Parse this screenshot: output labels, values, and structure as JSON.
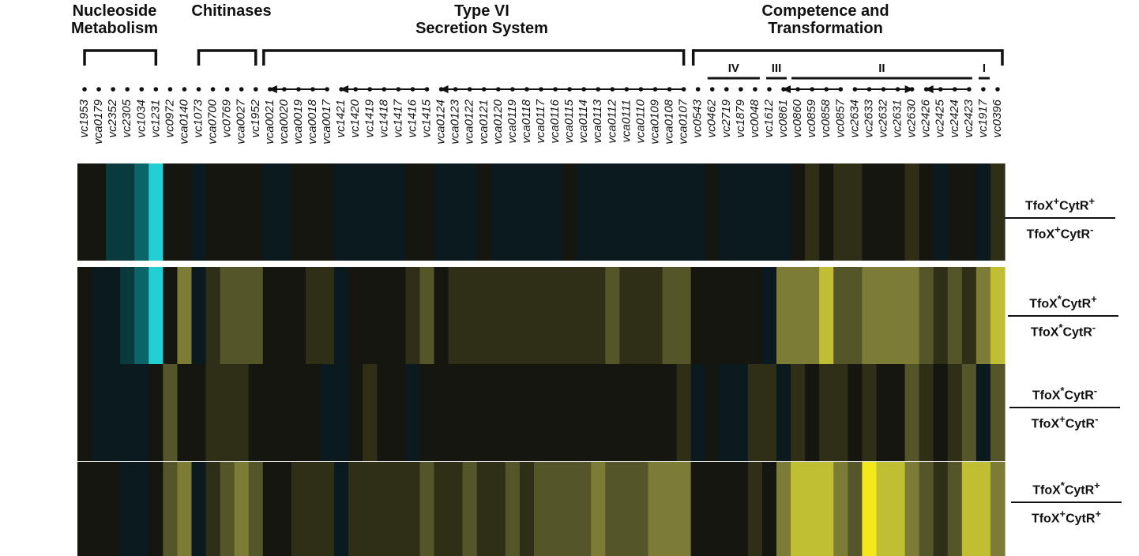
{
  "groups": [
    {
      "title": "Nucleoside\nMetabolism"
    },
    {
      "title": "Chitinases"
    },
    {
      "title": "Type VI\nSecretion System"
    },
    {
      "title": "Competence and\nTransformation"
    }
  ],
  "operon_labels": [
    "IV",
    "III",
    "II",
    "I"
  ],
  "genes": [
    "vc1953",
    "vca0179",
    "vc2352",
    "vc2305",
    "vc1034",
    "vc1231",
    "vc0972",
    "vca0140",
    "vc1073",
    "vca0700",
    "vc0769",
    "vca0027",
    "vc1952",
    "vca0021",
    "vca0020",
    "vca0019",
    "vca0018",
    "vca0017",
    "vc1421",
    "vc1420",
    "vc1419",
    "vc1418",
    "vc1417",
    "vc1416",
    "vc1415",
    "vca0124",
    "vca0123",
    "vca0122",
    "vca0121",
    "vca0120",
    "vca0119",
    "vca0118",
    "vca0117",
    "vca0116",
    "vca0115",
    "vca0114",
    "vca0113",
    "vca0112",
    "vca0111",
    "vca0110",
    "vca0109",
    "vca0108",
    "vca0107",
    "vc0543",
    "vc0462",
    "vc2719",
    "vc1879",
    "vc0048",
    "vc1612",
    "vc0861",
    "vc0860",
    "vc0859",
    "vc0858",
    "vc0857",
    "vc2634",
    "vc2633",
    "vc2632",
    "vc2631",
    "vc2630",
    "vc2426",
    "vc2425",
    "vc2424",
    "vc2423",
    "vc1917",
    "vc0396"
  ],
  "rows": [
    {
      "strain1": "TfoX",
      "mark1": "+",
      "gene1": "CytR",
      "sign1": "+",
      "strain2": "TfoX",
      "mark2": "+",
      "gene2": "CytR",
      "sign2": "-"
    },
    {
      "strain1": "TfoX",
      "mark1": "*",
      "gene1": "CytR",
      "sign1": "+",
      "strain2": "TfoX",
      "mark2": "*",
      "gene2": "CytR",
      "sign2": "-"
    },
    {
      "strain1": "TfoX",
      "mark1": "*",
      "gene1": "CytR",
      "sign1": "-",
      "strain2": "TfoX",
      "mark2": "+",
      "gene2": "CytR",
      "sign2": "-"
    },
    {
      "strain1": "TfoX",
      "mark1": "*",
      "gene1": "CytR",
      "sign1": "+",
      "strain2": "TfoX",
      "mark2": "+",
      "gene2": "CytR",
      "sign2": "+"
    }
  ],
  "heatmap_values": [
    [
      0,
      0,
      -2,
      -2,
      -3,
      -5,
      0,
      0,
      -1,
      0,
      0,
      0,
      0,
      -1,
      -1,
      0,
      0,
      0,
      -1,
      -1,
      -1,
      -1,
      -1,
      0,
      0,
      -1,
      -1,
      -1,
      0,
      -1,
      -1,
      -1,
      -1,
      -1,
      0,
      -1,
      -1,
      -1,
      -1,
      -1,
      -1,
      -1,
      -1,
      -1,
      0,
      -1,
      -1,
      -1,
      -1,
      -1,
      0,
      1,
      0,
      1,
      1,
      0,
      0,
      0,
      1,
      0,
      -1,
      0,
      0,
      -1,
      1
    ],
    [
      0,
      -1,
      -1,
      -2,
      -3,
      -5,
      0,
      3,
      -1,
      1,
      2,
      2,
      2,
      0,
      0,
      0,
      1,
      1,
      -1,
      0,
      0,
      0,
      0,
      1,
      2,
      0,
      1,
      1,
      1,
      1,
      1,
      1,
      1,
      1,
      1,
      1,
      1,
      2,
      1,
      1,
      1,
      2,
      2,
      0,
      0,
      0,
      0,
      0,
      -1,
      3,
      3,
      3,
      4,
      2,
      2,
      3,
      3,
      3,
      3,
      2,
      1,
      2,
      1,
      3,
      4
    ],
    [
      0,
      -1,
      -1,
      -1,
      -1,
      0,
      2,
      0,
      0,
      1,
      1,
      1,
      0,
      0,
      0,
      0,
      0,
      -1,
      -1,
      0,
      1,
      0,
      0,
      -1,
      0,
      0,
      0,
      0,
      0,
      0,
      0,
      0,
      0,
      0,
      0,
      0,
      0,
      0,
      0,
      0,
      0,
      0,
      1,
      -1,
      0,
      -1,
      -1,
      1,
      1,
      -1,
      1,
      0,
      1,
      1,
      0,
      1,
      0,
      0,
      2,
      1,
      0,
      1,
      2,
      -1,
      2
    ],
    [
      0,
      0,
      0,
      -1,
      -1,
      0,
      2,
      3,
      -1,
      1,
      2,
      3,
      2,
      0,
      0,
      1,
      1,
      1,
      -1,
      1,
      1,
      1,
      1,
      1,
      2,
      1,
      1,
      2,
      1,
      1,
      2,
      1,
      2,
      2,
      2,
      2,
      3,
      2,
      2,
      2,
      3,
      3,
      3,
      0,
      0,
      0,
      0,
      1,
      0,
      3,
      4,
      4,
      4,
      3,
      2,
      5,
      4,
      4,
      3,
      2,
      1,
      2,
      4,
      4,
      3
    ]
  ]
}
